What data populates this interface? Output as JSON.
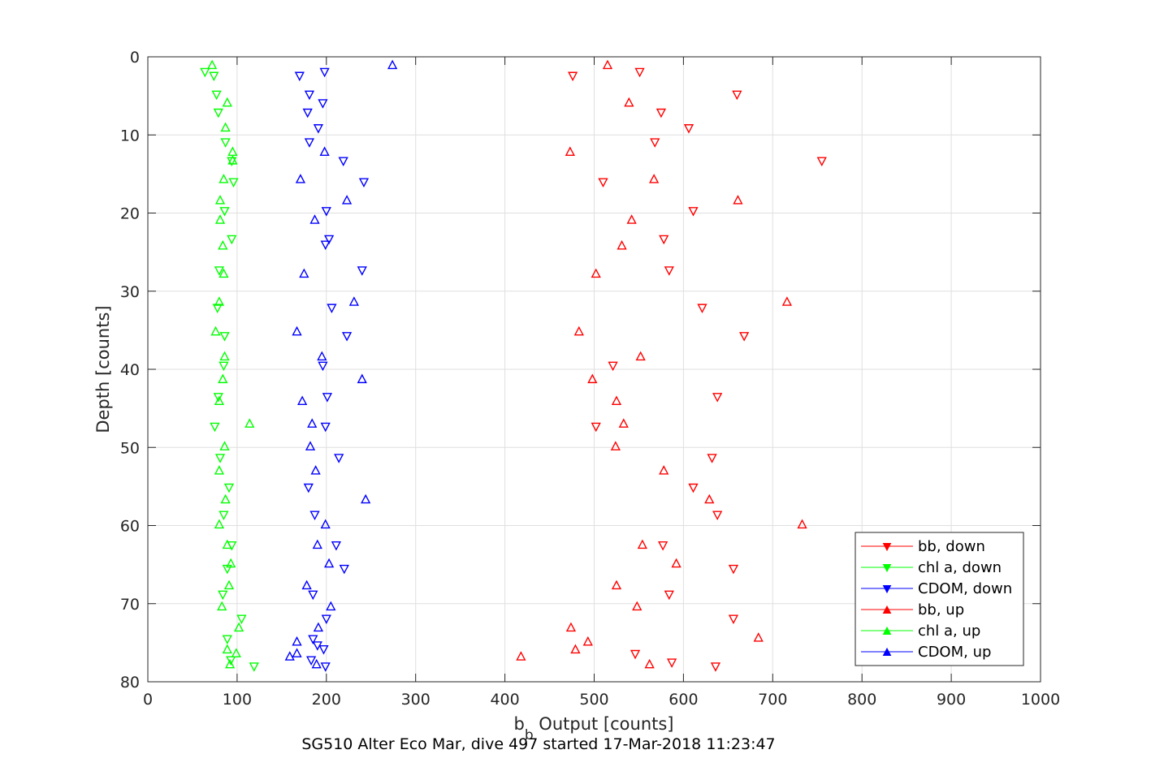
{
  "chart_data": {
    "type": "scatter",
    "title": "",
    "caption": "SG510 Alter Eco Mar, dive 497 started 17-Mar-2018 11:23:47",
    "xlabel_main": "b",
    "xlabel_sub": "b",
    "xlabel_rest": " Output [counts]",
    "ylabel": "Depth [counts]",
    "xlim": [
      0,
      1000
    ],
    "ylim": [
      0,
      80
    ],
    "y_reversed": true,
    "grid": true,
    "legend_position": "lower-right",
    "xticks": [
      "0",
      "100",
      "200",
      "300",
      "400",
      "500",
      "600",
      "700",
      "800",
      "900",
      "1000"
    ],
    "yticks": [
      "0",
      "10",
      "20",
      "30",
      "40",
      "50",
      "60",
      "70",
      "80"
    ],
    "xtick_values": [
      0,
      100,
      200,
      300,
      400,
      500,
      600,
      700,
      800,
      900,
      1000
    ],
    "ytick_values": [
      0,
      10,
      20,
      30,
      40,
      50,
      60,
      70,
      80
    ],
    "series": [
      {
        "name": "bb, down",
        "color": "#ff0000",
        "marker": "triangle-down",
        "points": [
          [
            476,
            2.4
          ],
          [
            551,
            1.9
          ],
          [
            660,
            4.8
          ],
          [
            575,
            7.1
          ],
          [
            606,
            9.1
          ],
          [
            568,
            10.9
          ],
          [
            755,
            13.3
          ],
          [
            510,
            16.0
          ],
          [
            611,
            19.7
          ],
          [
            578,
            23.3
          ],
          [
            584,
            27.3
          ],
          [
            621,
            32.1
          ],
          [
            668,
            35.7
          ],
          [
            521,
            39.5
          ],
          [
            638,
            43.5
          ],
          [
            502,
            47.3
          ],
          [
            632,
            51.3
          ],
          [
            611,
            55.1
          ],
          [
            638,
            58.6
          ],
          [
            577,
            62.5
          ],
          [
            656,
            65.5
          ],
          [
            584,
            68.8
          ],
          [
            656,
            71.9
          ],
          [
            546,
            76.4
          ],
          [
            587,
            77.5
          ],
          [
            636,
            78.0
          ]
        ]
      },
      {
        "name": "chl a, down",
        "color": "#00ff00",
        "marker": "triangle-down",
        "points": [
          [
            64,
            1.9
          ],
          [
            74,
            2.4
          ],
          [
            77,
            4.8
          ],
          [
            79,
            7.1
          ],
          [
            87,
            10.9
          ],
          [
            94,
            13.3
          ],
          [
            96,
            16.0
          ],
          [
            86,
            19.7
          ],
          [
            94,
            23.3
          ],
          [
            80,
            27.3
          ],
          [
            78,
            32.1
          ],
          [
            86,
            35.7
          ],
          [
            85,
            39.5
          ],
          [
            79,
            43.5
          ],
          [
            75,
            47.3
          ],
          [
            81,
            51.3
          ],
          [
            91,
            55.1
          ],
          [
            85,
            58.6
          ],
          [
            94,
            62.5
          ],
          [
            89,
            65.5
          ],
          [
            84,
            68.8
          ],
          [
            105,
            71.9
          ],
          [
            89,
            74.5
          ],
          [
            93,
            77.2
          ],
          [
            119,
            78.0
          ]
        ]
      },
      {
        "name": "CDOM, down",
        "color": "#0000ff",
        "marker": "triangle-down",
        "points": [
          [
            170,
            2.4
          ],
          [
            198,
            1.9
          ],
          [
            181,
            4.8
          ],
          [
            196,
            5.9
          ],
          [
            179,
            7.1
          ],
          [
            191,
            9.1
          ],
          [
            181,
            10.9
          ],
          [
            219,
            13.3
          ],
          [
            242,
            16.0
          ],
          [
            200,
            19.7
          ],
          [
            203,
            23.3
          ],
          [
            199,
            24.0
          ],
          [
            240,
            27.3
          ],
          [
            206,
            32.1
          ],
          [
            223,
            35.7
          ],
          [
            196,
            39.5
          ],
          [
            201,
            43.5
          ],
          [
            199,
            47.3
          ],
          [
            214,
            51.3
          ],
          [
            180,
            55.1
          ],
          [
            187,
            58.6
          ],
          [
            211,
            62.5
          ],
          [
            220,
            65.5
          ],
          [
            185,
            68.8
          ],
          [
            200,
            71.9
          ],
          [
            185,
            74.5
          ],
          [
            190,
            75.3
          ],
          [
            197,
            75.8
          ],
          [
            183,
            77.2
          ],
          [
            199,
            78.0
          ]
        ]
      },
      {
        "name": "bb, up",
        "color": "#ff0000",
        "marker": "triangle-up",
        "points": [
          [
            515,
            1.1
          ],
          [
            539,
            5.9
          ],
          [
            473,
            12.2
          ],
          [
            567,
            15.7
          ],
          [
            661,
            18.4
          ],
          [
            542,
            20.9
          ],
          [
            531,
            24.2
          ],
          [
            502,
            27.8
          ],
          [
            716,
            31.4
          ],
          [
            483,
            35.2
          ],
          [
            552,
            38.4
          ],
          [
            498,
            41.3
          ],
          [
            525,
            44.1
          ],
          [
            533,
            47.0
          ],
          [
            524,
            49.9
          ],
          [
            578,
            53.0
          ],
          [
            629,
            56.7
          ],
          [
            733,
            59.9
          ],
          [
            554,
            62.5
          ],
          [
            592,
            64.9
          ],
          [
            525,
            67.7
          ],
          [
            548,
            70.4
          ],
          [
            474,
            73.1
          ],
          [
            684,
            74.4
          ],
          [
            493,
            74.9
          ],
          [
            479,
            75.9
          ],
          [
            418,
            76.8
          ],
          [
            562,
            77.8
          ]
        ]
      },
      {
        "name": "chl a, up",
        "color": "#00ff00",
        "marker": "triangle-up",
        "points": [
          [
            72,
            1.1
          ],
          [
            89,
            5.9
          ],
          [
            87,
            9.1
          ],
          [
            95,
            12.2
          ],
          [
            95,
            13.3
          ],
          [
            85,
            15.7
          ],
          [
            81,
            18.4
          ],
          [
            81,
            20.9
          ],
          [
            84,
            24.2
          ],
          [
            85,
            27.8
          ],
          [
            80,
            31.4
          ],
          [
            76,
            35.2
          ],
          [
            86,
            38.4
          ],
          [
            84,
            41.3
          ],
          [
            80,
            44.1
          ],
          [
            114,
            47.0
          ],
          [
            86,
            49.9
          ],
          [
            80,
            53.0
          ],
          [
            87,
            56.7
          ],
          [
            80,
            59.9
          ],
          [
            89,
            62.5
          ],
          [
            93,
            64.9
          ],
          [
            91,
            67.7
          ],
          [
            83,
            70.4
          ],
          [
            102,
            73.1
          ],
          [
            89,
            75.9
          ],
          [
            99,
            76.4
          ],
          [
            92,
            77.8
          ]
        ]
      },
      {
        "name": "CDOM, up",
        "color": "#0000ff",
        "marker": "triangle-up",
        "points": [
          [
            274,
            1.1
          ],
          [
            198,
            12.2
          ],
          [
            171,
            15.7
          ],
          [
            223,
            18.4
          ],
          [
            187,
            20.9
          ],
          [
            175,
            27.8
          ],
          [
            231,
            31.4
          ],
          [
            167,
            35.2
          ],
          [
            195,
            38.4
          ],
          [
            240,
            41.3
          ],
          [
            173,
            44.1
          ],
          [
            184,
            47.0
          ],
          [
            182,
            49.9
          ],
          [
            188,
            53.0
          ],
          [
            244,
            56.7
          ],
          [
            199,
            59.9
          ],
          [
            190,
            62.5
          ],
          [
            203,
            64.9
          ],
          [
            178,
            67.7
          ],
          [
            205,
            70.4
          ],
          [
            191,
            73.1
          ],
          [
            167,
            74.9
          ],
          [
            167,
            76.4
          ],
          [
            159,
            76.8
          ],
          [
            189,
            77.8
          ]
        ]
      }
    ]
  }
}
